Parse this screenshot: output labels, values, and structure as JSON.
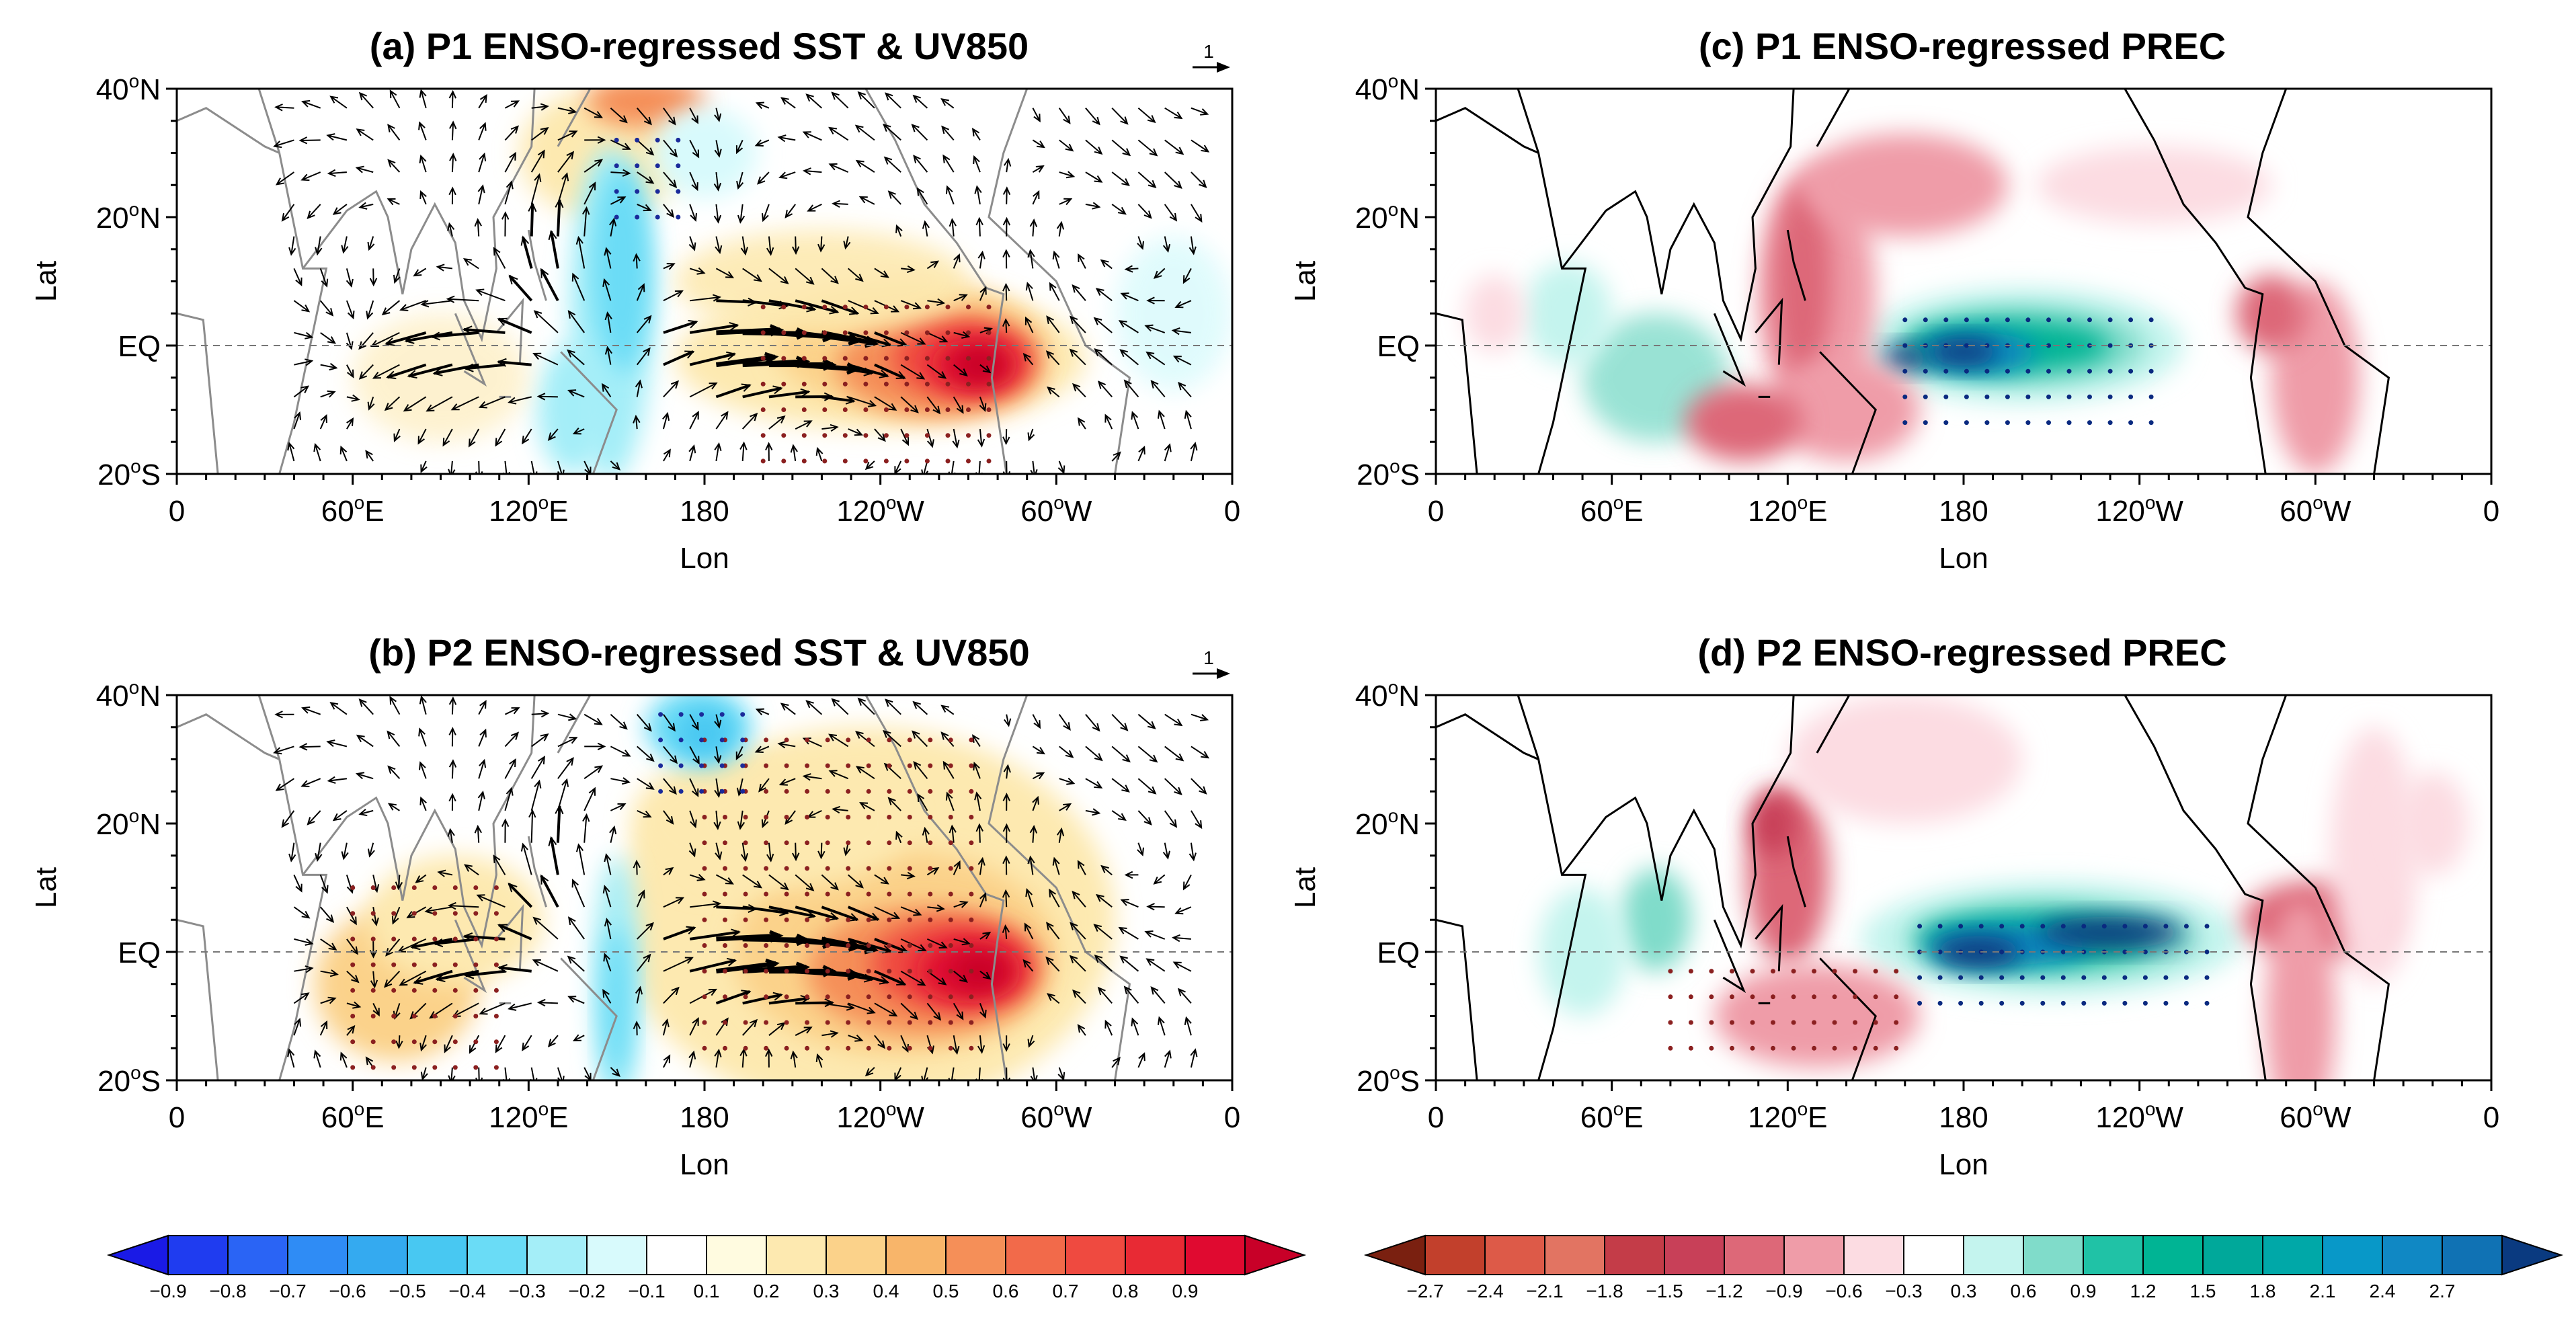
{
  "figure": {
    "panels": [
      {
        "id": "a",
        "title": "(a) P1 ENSO-regressed SST & UV850",
        "ref_vector_label": "1"
      },
      {
        "id": "b",
        "title": "(b) P2 ENSO-regressed SST & UV850",
        "ref_vector_label": "1"
      },
      {
        "id": "c",
        "title": "(c) P1 ENSO-regressed PREC"
      },
      {
        "id": "d",
        "title": "(d) P2 ENSO-regressed PREC"
      }
    ],
    "xlabel": "Lon",
    "ylabel": "Lat",
    "x_ticks": [
      {
        "main": "0",
        "sup": "",
        "suf": ""
      },
      {
        "main": "60",
        "sup": "o",
        "suf": "E"
      },
      {
        "main": "120",
        "sup": "o",
        "suf": "E"
      },
      {
        "main": "180",
        "sup": "",
        "suf": ""
      },
      {
        "main": "120",
        "sup": "o",
        "suf": "W"
      },
      {
        "main": "60",
        "sup": "o",
        "suf": "W"
      },
      {
        "main": "0",
        "sup": "",
        "suf": ""
      }
    ],
    "y_ticks": [
      {
        "main": "40",
        "sup": "o",
        "suf": "N"
      },
      {
        "main": "20",
        "sup": "o",
        "suf": "N"
      },
      {
        "main": "EQ",
        "sup": "",
        "suf": ""
      },
      {
        "main": "20",
        "sup": "o",
        "suf": "S"
      }
    ],
    "colorbars": {
      "sst": {
        "labels": [
          "−0.9",
          "−0.8",
          "−0.7",
          "−0.6",
          "−0.5",
          "−0.4",
          "−0.3",
          "−0.2",
          "−0.1",
          "0.1",
          "0.2",
          "0.3",
          "0.4",
          "0.5",
          "0.6",
          "0.7",
          "0.8",
          "0.9"
        ],
        "colors": [
          "#1a1ae6",
          "#1f3cf0",
          "#2a64f5",
          "#2f8cf5",
          "#34aaf0",
          "#48c8f2",
          "#6adcf6",
          "#a4eef8",
          "#d8fafc",
          "#ffffff",
          "#fffbe0",
          "#fde9b0",
          "#fbd28a",
          "#f8b56a",
          "#f58f58",
          "#f26a4a",
          "#ef4a40",
          "#e82a34",
          "#e00a30",
          "#c80028"
        ]
      },
      "prec": {
        "labels": [
          "−2.7",
          "−2.4",
          "−2.1",
          "−1.8",
          "−1.5",
          "−1.2",
          "−0.9",
          "−0.6",
          "−0.3",
          "0.3",
          "0.6",
          "0.9",
          "1.2",
          "1.5",
          "1.8",
          "2.1",
          "2.4",
          "2.7"
        ],
        "colors": [
          "#7a2010",
          "#c2402c",
          "#dd5a48",
          "#e27462",
          "#c43c48",
          "#c84058",
          "#dd6878",
          "#ef9ca8",
          "#fcdce2",
          "#ffffff",
          "#c4f4ee",
          "#80dcca",
          "#20c2a6",
          "#00b494",
          "#00a89a",
          "#00a8a8",
          "#0898c8",
          "#1088c4",
          "#1072b4",
          "#0a3a80"
        ]
      }
    }
  },
  "chart_data": [
    {
      "type": "heatmap",
      "title": "(a) P1 ENSO-regressed SST & UV850",
      "xlabel": "Lon",
      "ylabel": "Lat",
      "xlim": [
        0,
        360
      ],
      "ylim": [
        -20,
        40
      ],
      "colorbar_range": [
        -0.9,
        0.9
      ],
      "overlay": "vector",
      "reference_vector": 1,
      "pattern": "El Nino warming in central-eastern equatorial Pacific (max about 0.9), cooling (about -0.3 to -0.5) in western Pacific horseshoe; strong westerly wind anomalies over the equatorial central Pacific"
    },
    {
      "type": "heatmap",
      "title": "(b) P2 ENSO-regressed SST & UV850",
      "xlabel": "Lon",
      "ylabel": "Lat",
      "xlim": [
        0,
        360
      ],
      "ylim": [
        -20,
        40
      ],
      "colorbar_range": [
        -0.9,
        0.9
      ],
      "overlay": "vector",
      "reference_vector": 1,
      "pattern": "Stronger and broader eastern Pacific warming, Indian Ocean warming, weaker western Pacific cooling"
    },
    {
      "type": "heatmap",
      "title": "(c) P1 ENSO-regressed PREC",
      "xlabel": "Lon",
      "ylabel": "Lat",
      "xlim": [
        0,
        360
      ],
      "ylim": [
        -20,
        40
      ],
      "colorbar_range": [
        -2.7,
        2.7
      ],
      "pattern": "Positive precipitation in central equatorial Pacific (up to 2.7), negative over Maritime Continent and western Pacific"
    },
    {
      "type": "heatmap",
      "title": "(d) P2 ENSO-regressed PREC",
      "xlabel": "Lon",
      "ylabel": "Lat",
      "xlim": [
        0,
        360
      ],
      "ylim": [
        -20,
        40
      ],
      "colorbar_range": [
        -2.7,
        2.7
      ],
      "pattern": "Elongated positive precipitation band in central-eastern equatorial Pacific, dry anomalies over Maritime Continent"
    }
  ]
}
